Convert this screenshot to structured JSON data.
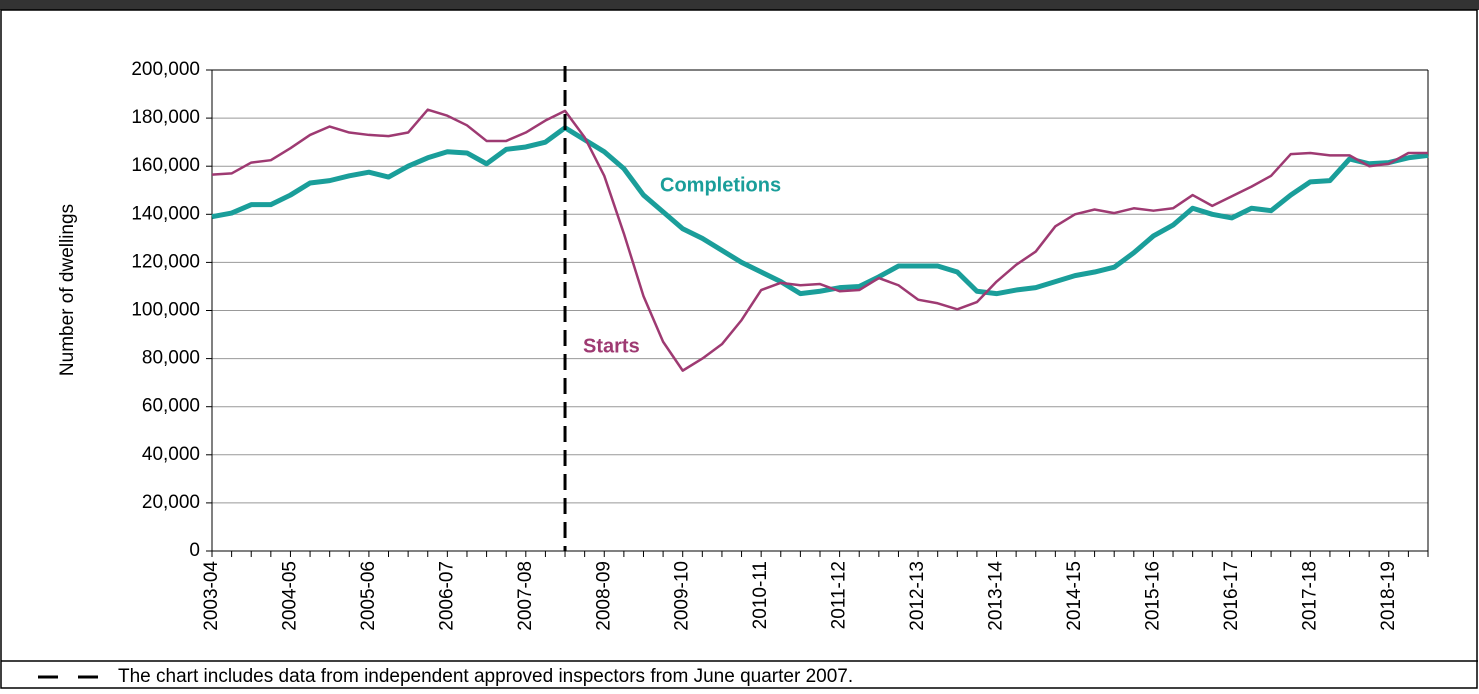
{
  "chart_data": {
    "type": "line",
    "y_label": "Number  of dwellings",
    "footnote": "The chart includes data from independent approved inspectors from June quarter 2007.",
    "categories": [
      "2003-04",
      null,
      null,
      null,
      "2004-05",
      null,
      null,
      null,
      "2005-06",
      null,
      null,
      null,
      "2006-07",
      null,
      null,
      null,
      "2007-08",
      null,
      null,
      null,
      "2008-09",
      null,
      null,
      null,
      "2009-10",
      null,
      null,
      null,
      "2010-11",
      null,
      null,
      null,
      "2011-12",
      null,
      null,
      null,
      "2012-13",
      null,
      null,
      null,
      "2013-14",
      null,
      null,
      null,
      "2014-15",
      null,
      null,
      null,
      "2015-16",
      null,
      null,
      null,
      "2016-17",
      null,
      null,
      null,
      "2017-18",
      null,
      null,
      null,
      "2018-19",
      null,
      null
    ],
    "reference_line_index": 18,
    "series": [
      {
        "name": "Completions",
        "color": "#1a9e9a",
        "width": 5,
        "values": [
          139000,
          140500,
          144000,
          144000,
          148000,
          153000,
          154000,
          156000,
          157500,
          155500,
          160000,
          163500,
          166000,
          165500,
          161000,
          167000,
          168000,
          170000,
          176000,
          171000,
          166000,
          159000,
          148000,
          141000,
          134000,
          130000,
          125000,
          120000,
          116000,
          112000,
          107000,
          108000,
          109500,
          110000,
          114000,
          118500,
          118500,
          118500,
          116000,
          108000,
          107000,
          108500,
          109500,
          112000,
          114500,
          116000,
          118000,
          124000,
          131000,
          135500,
          142500,
          140000,
          138500,
          142500,
          141500,
          148000,
          153500,
          154000,
          163000,
          161000,
          161500,
          163500,
          164500
        ]
      },
      {
        "name": "Starts",
        "color": "#9e3a72",
        "width": 2.5,
        "values": [
          156500,
          157000,
          161500,
          162500,
          167500,
          173000,
          176500,
          174000,
          173000,
          172500,
          174000,
          183500,
          181000,
          177000,
          170500,
          170500,
          174000,
          179000,
          183000,
          172000,
          156000,
          132000,
          106000,
          87000,
          75000,
          80000,
          86000,
          96000,
          108500,
          111500,
          110500,
          111000,
          108000,
          108500,
          113500,
          110500,
          104500,
          103000,
          100500,
          103500,
          112000,
          119000,
          124500,
          135000,
          140000,
          142000,
          140500,
          142500,
          141500,
          142500,
          148000,
          143500,
          147500,
          151500,
          156000,
          165000,
          165500,
          164500,
          164500,
          160000,
          161000,
          165500,
          165500
        ]
      }
    ],
    "ylim": [
      0,
      200000
    ],
    "yticks": [
      0,
      {
        "value": 20000,
        "label": "20,000"
      },
      {
        "value": 40000,
        "label": "40,000"
      },
      {
        "value": 60000,
        "label": "60,000"
      },
      {
        "value": 80000,
        "label": "80,000"
      },
      {
        "value": 100000,
        "label": "100,000"
      },
      {
        "value": 120000,
        "label": "120,000"
      },
      {
        "value": 140000,
        "label": "140,000"
      },
      {
        "value": 160000,
        "label": "160,000"
      },
      {
        "value": 180000,
        "label": "180,000"
      },
      {
        "value": 200000,
        "label": "200,000"
      }
    ],
    "grid": true
  }
}
